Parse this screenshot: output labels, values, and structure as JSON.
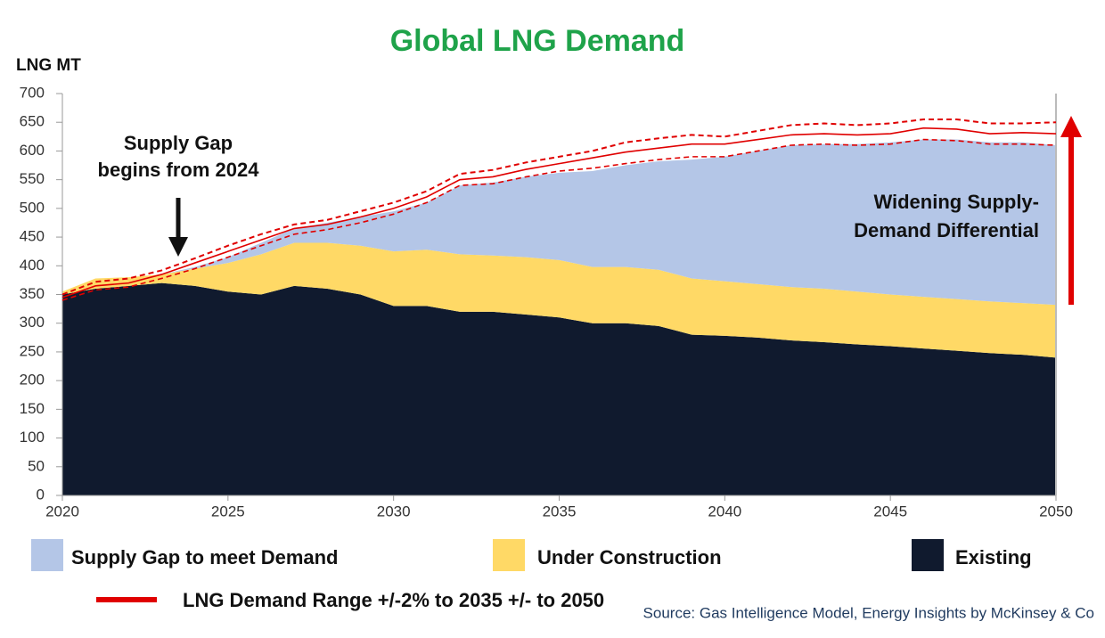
{
  "chart_data": {
    "type": "area",
    "stacked": true,
    "title": "Global LNG Demand",
    "title_color": "#1fa34a",
    "y_label": "LNG MT",
    "x": [
      2020,
      2021,
      2022,
      2023,
      2024,
      2025,
      2026,
      2027,
      2028,
      2029,
      2030,
      2031,
      2032,
      2033,
      2034,
      2035,
      2036,
      2037,
      2038,
      2039,
      2040,
      2041,
      2042,
      2043,
      2044,
      2045,
      2046,
      2047,
      2048,
      2049,
      2050
    ],
    "xlim": [
      2020,
      2050
    ],
    "xticks": [
      2020,
      2025,
      2030,
      2035,
      2040,
      2045,
      2050
    ],
    "ylim": [
      0,
      700
    ],
    "yticks": [
      0,
      50,
      100,
      150,
      200,
      250,
      300,
      350,
      400,
      450,
      500,
      550,
      600,
      650,
      700
    ],
    "series": [
      {
        "name": "Supply Gap to meet Demand",
        "color": "#b4c6e7",
        "values": [
          0,
          0,
          0,
          0,
          3,
          10,
          20,
          25,
          35,
          50,
          70,
          82,
          120,
          127,
          140,
          152,
          167,
          177,
          189,
          207,
          217,
          232,
          247,
          252,
          257,
          265,
          274,
          278,
          277,
          280,
          278
        ]
      },
      {
        "name": "Under Construction",
        "color": "#ffd966",
        "values": [
          5,
          18,
          15,
          15,
          30,
          50,
          70,
          75,
          80,
          85,
          95,
          98,
          100,
          98,
          100,
          100,
          98,
          98,
          98,
          98,
          95,
          93,
          93,
          93,
          92,
          90,
          90,
          90,
          90,
          90,
          92
        ]
      },
      {
        "name": "Existing",
        "color": "#101a2e",
        "values": [
          350,
          360,
          365,
          370,
          365,
          355,
          350,
          365,
          360,
          350,
          330,
          330,
          320,
          320,
          315,
          310,
          300,
          300,
          295,
          280,
          278,
          275,
          270,
          267,
          263,
          260,
          256,
          252,
          248,
          245,
          240
        ]
      },
      {
        "name": "LNG Demand Range +/-2% to 2035 +/- to 2050",
        "color": "#e00000",
        "type": "line",
        "values": [
          345,
          365,
          370,
          385,
          405,
          425,
          445,
          465,
          472,
          485,
          500,
          520,
          550,
          555,
          568,
          578,
          588,
          598,
          605,
          612,
          612,
          620,
          628,
          630,
          628,
          630,
          640,
          638,
          630,
          632,
          630
        ],
        "upper": [
          350,
          372,
          378,
          392,
          413,
          435,
          455,
          472,
          480,
          495,
          510,
          530,
          560,
          567,
          580,
          590,
          600,
          615,
          622,
          628,
          625,
          635,
          645,
          648,
          645,
          648,
          655,
          655,
          648,
          648,
          650
        ],
        "lower": [
          340,
          358,
          363,
          378,
          395,
          415,
          435,
          455,
          463,
          475,
          490,
          510,
          540,
          543,
          555,
          565,
          570,
          578,
          585,
          590,
          590,
          600,
          610,
          612,
          610,
          612,
          620,
          618,
          612,
          612,
          610
        ]
      }
    ],
    "annotations": [
      {
        "lines": [
          "Supply Gap",
          "begins from 2024"
        ]
      },
      {
        "lines": [
          "Widening Supply-",
          "Demand Differential"
        ]
      }
    ],
    "source": "Source: Gas Intelligence Model, Energy Insights by McKinsey & Co"
  }
}
